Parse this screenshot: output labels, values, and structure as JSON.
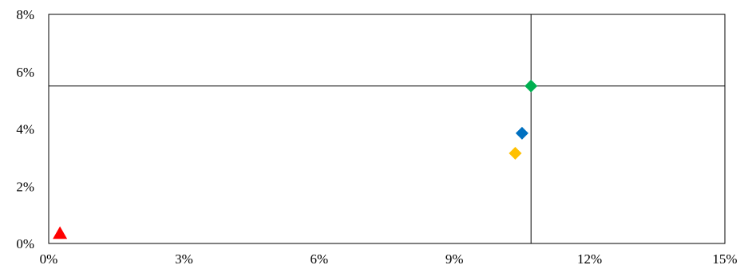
{
  "chart_data": {
    "type": "scatter",
    "title": "",
    "xlabel": "",
    "ylabel": "",
    "xlim": [
      0,
      15
    ],
    "ylim": [
      0,
      8
    ],
    "x_ticks": [
      0,
      3,
      6,
      9,
      12,
      15
    ],
    "y_ticks": [
      0,
      2,
      4,
      6,
      8
    ],
    "x_tick_labels": [
      "0%",
      "3%",
      "6%",
      "9%",
      "12%",
      "15%"
    ],
    "y_tick_labels": [
      "0%",
      "2%",
      "4%",
      "6%",
      "8%"
    ],
    "grid": false,
    "reference_lines": {
      "x": 10.7,
      "y": 5.5
    },
    "series": [
      {
        "marker": "triangle",
        "color": "#ff0000",
        "points": [
          {
            "x": 0.25,
            "y": 0.35
          }
        ]
      },
      {
        "marker": "diamond",
        "color": "#ffc000",
        "points": [
          {
            "x": 10.35,
            "y": 3.15
          }
        ]
      },
      {
        "marker": "diamond",
        "color": "#0070c0",
        "points": [
          {
            "x": 10.5,
            "y": 3.85
          }
        ]
      },
      {
        "marker": "diamond",
        "color": "#00b050",
        "points": [
          {
            "x": 10.7,
            "y": 5.5
          }
        ]
      }
    ]
  }
}
